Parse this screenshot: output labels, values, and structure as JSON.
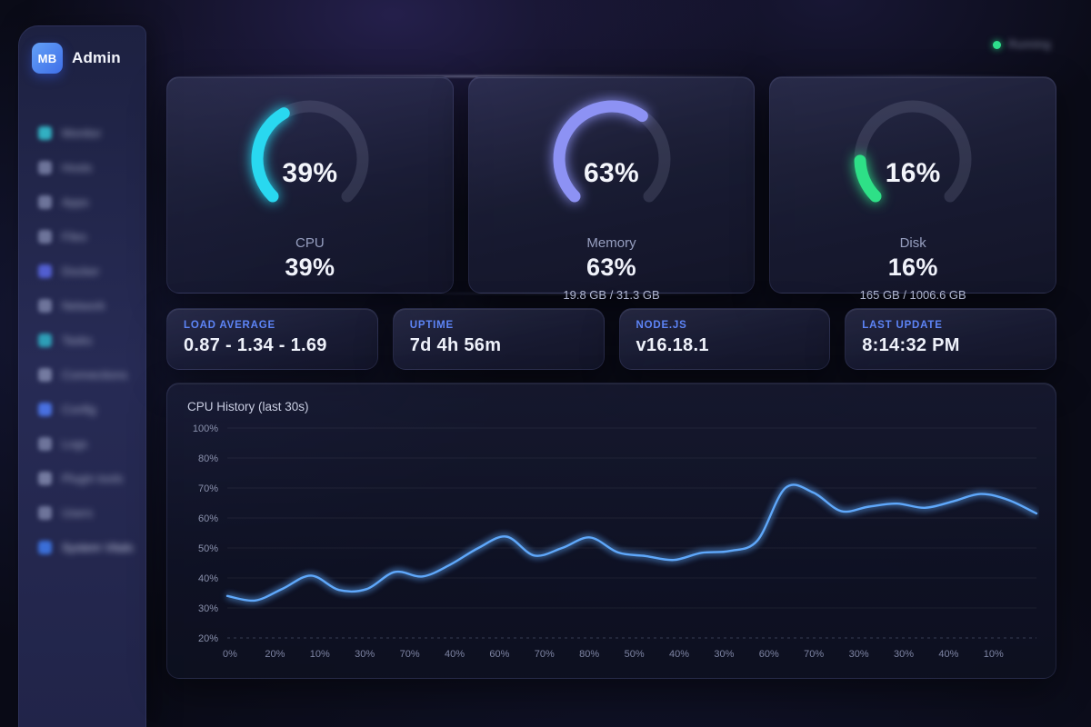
{
  "app": {
    "logo_text": "MB",
    "title": "Admin"
  },
  "status_indicator": {
    "dot_color": "#2ee08c",
    "blurred": true,
    "label_placeholder": "Running"
  },
  "sidebar": {
    "blurred": true,
    "items": [
      {
        "label_placeholder": "Monitor",
        "icon_color": "#35c9d8",
        "active": false
      },
      {
        "label_placeholder": "Hosts",
        "icon_color": "#7b82a8",
        "active": false
      },
      {
        "label_placeholder": "Apps",
        "icon_color": "#7b82a8",
        "active": false
      },
      {
        "label_placeholder": "Files",
        "icon_color": "#7b82a8",
        "active": false
      },
      {
        "label_placeholder": "Docker",
        "icon_color": "#5a68e8",
        "active": false
      },
      {
        "label_placeholder": "Network",
        "icon_color": "#7b82a8",
        "active": false
      },
      {
        "label_placeholder": "Tasks",
        "icon_color": "#2fb3c9",
        "active": false
      },
      {
        "label_placeholder": "Connections",
        "icon_color": "#8289ae",
        "active": false
      },
      {
        "label_placeholder": "Config",
        "icon_color": "#4f7dfa",
        "active": false
      },
      {
        "label_placeholder": "Logs",
        "icon_color": "#7b82a8",
        "active": false
      },
      {
        "label_placeholder": "Plugin tools",
        "icon_color": "#8289ae",
        "active": false
      },
      {
        "label_placeholder": "Users",
        "icon_color": "#7b82a8",
        "active": false
      },
      {
        "label_placeholder": "System Vitals",
        "icon_color": "#3f7bf0",
        "active": true
      }
    ]
  },
  "gauges": [
    {
      "id": "cpu",
      "label": "CPU",
      "percent": 39,
      "center_text": "39%",
      "value_text": "39%",
      "sub": "",
      "color": "#29d8f0"
    },
    {
      "id": "memory",
      "label": "Memory",
      "percent": 63,
      "center_text": "63%",
      "value_text": "63%",
      "sub": "19.8 GB / 31.3 GB",
      "color": "#8d92f4"
    },
    {
      "id": "disk",
      "label": "Disk",
      "percent": 16,
      "center_text": "16%",
      "value_text": "16%",
      "sub": "165 GB / 1006.6 GB",
      "color": "#2ee087"
    }
  ],
  "gauge_style": {
    "track_color": "rgba(173,181,214,0.16)",
    "start_angle_deg": 225,
    "total_sweep_deg": 270
  },
  "stats": [
    {
      "label": "LOAD AVERAGE",
      "value": "0.87 - 1.34 - 1.69"
    },
    {
      "label": "UPTIME",
      "value": "7d 4h 56m"
    },
    {
      "label": "NODE.JS",
      "value": "v16.18.1"
    },
    {
      "label": "LAST UPDATE",
      "value": "8:14:32 PM"
    }
  ],
  "chart_data": {
    "type": "line",
    "title": "CPU History (last 30s)",
    "unit": "%",
    "y_ticks": [
      "100%",
      "80%",
      "70%",
      "60%",
      "50%",
      "40%",
      "30%",
      "20%"
    ],
    "y_tick_values": [
      100,
      80,
      70,
      60,
      50,
      40,
      30,
      20
    ],
    "y_axis_evenly_spaced_ticks": true,
    "x_tick_labels": [
      "0%",
      "20%",
      "10%",
      "30%",
      "70%",
      "40%",
      "60%",
      "70%",
      "80%",
      "50%",
      "40%",
      "30%",
      "60%",
      "70%",
      "30%",
      "30%",
      "40%",
      "10%"
    ],
    "values": [
      34,
      32.5,
      36.5,
      40.8,
      36,
      36.3,
      42,
      40.5,
      44.5,
      50,
      53.8,
      47.5,
      50,
      53.5,
      48.5,
      47.3,
      46,
      48.4,
      49,
      52.5,
      70,
      68.5,
      62.3,
      63.8,
      64.8,
      63.4,
      65.5,
      68,
      66,
      61.5
    ],
    "line_color": "#5fa8fb",
    "grid": "horizontal",
    "legend": "none"
  }
}
